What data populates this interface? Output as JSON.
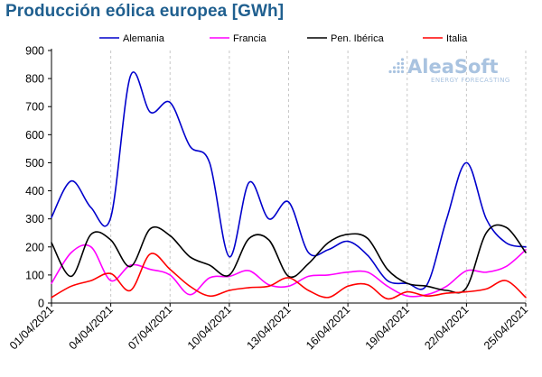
{
  "chart_data": {
    "type": "line",
    "title": "Producción eólica europea [GWh]",
    "ylim": [
      0,
      900
    ],
    "yticks": [
      0,
      100,
      200,
      300,
      400,
      500,
      600,
      700,
      800,
      900
    ],
    "xlim": [
      "2021-04-01",
      "2021-04-25"
    ],
    "xticks": [
      "01/04/2021",
      "04/04/2021",
      "07/04/2021",
      "10/04/2021",
      "13/04/2021",
      "16/04/2021",
      "19/04/2021",
      "22/04/2021",
      "25/04/2021"
    ],
    "dates": [
      "2021-04-01",
      "2021-04-02",
      "2021-04-03",
      "2021-04-04",
      "2021-04-05",
      "2021-04-06",
      "2021-04-07",
      "2021-04-08",
      "2021-04-09",
      "2021-04-10",
      "2021-04-11",
      "2021-04-12",
      "2021-04-13",
      "2021-04-14",
      "2021-04-15",
      "2021-04-16",
      "2021-04-17",
      "2021-04-18",
      "2021-04-19",
      "2021-04-20",
      "2021-04-21",
      "2021-04-22",
      "2021-04-23",
      "2021-04-24",
      "2021-04-25"
    ],
    "grid": "vertical-dashed",
    "legend_position": "top",
    "series": [
      {
        "name": "Alemania",
        "color": "#0000cc",
        "values": [
          305,
          435,
          340,
          305,
          810,
          680,
          715,
          560,
          500,
          165,
          430,
          300,
          360,
          180,
          190,
          220,
          170,
          80,
          70,
          65,
          300,
          500,
          300,
          215,
          200
        ]
      },
      {
        "name": "Francia",
        "color": "#ff00ff",
        "values": [
          70,
          180,
          200,
          80,
          135,
          120,
          100,
          30,
          90,
          95,
          115,
          65,
          60,
          95,
          100,
          110,
          110,
          60,
          25,
          30,
          60,
          115,
          110,
          130,
          190
        ]
      },
      {
        "name": "Pen. Ibérica",
        "color": "#000000",
        "values": [
          215,
          95,
          245,
          225,
          130,
          265,
          240,
          165,
          135,
          100,
          230,
          225,
          95,
          140,
          215,
          245,
          230,
          120,
          70,
          60,
          45,
          55,
          250,
          270,
          180
        ]
      },
      {
        "name": "Italia",
        "color": "#ff0000",
        "values": [
          20,
          60,
          80,
          105,
          45,
          175,
          120,
          60,
          25,
          45,
          55,
          60,
          90,
          45,
          20,
          60,
          65,
          15,
          40,
          25,
          35,
          40,
          50,
          80,
          20
        ]
      }
    ]
  },
  "watermark": {
    "brand": "AleaSoft",
    "tagline": "ENERGY FORECASTING"
  }
}
